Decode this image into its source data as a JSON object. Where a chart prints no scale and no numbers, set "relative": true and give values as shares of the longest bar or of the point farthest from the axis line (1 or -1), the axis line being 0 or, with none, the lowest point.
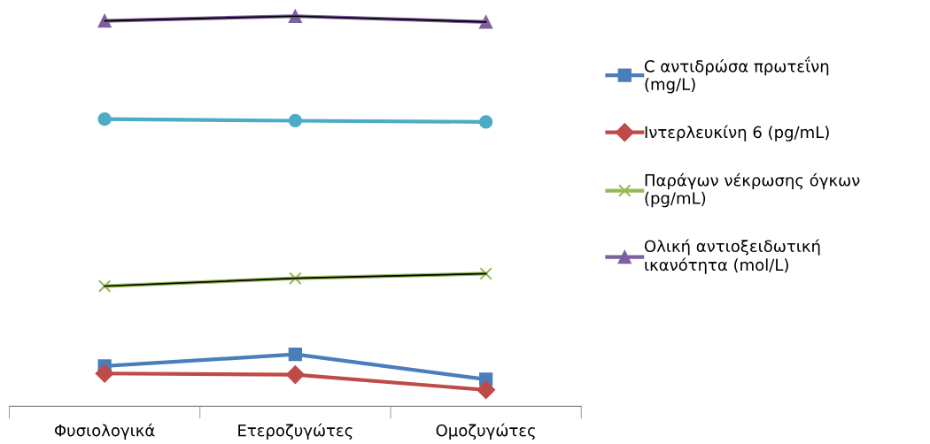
{
  "chart_data": {
    "type": "line",
    "relative": true,
    "categories": [
      "Φυσιολογικά",
      "Ετεροζυγώτες",
      "Ομοζυγώτες"
    ],
    "series": [
      {
        "name": "C αντιδρώσα πρωτεΐνη (mg/L)",
        "color": "#4a7ebb",
        "marker": "square",
        "values": [
          0.103,
          0.133,
          0.069
        ]
      },
      {
        "name": "Ιντερλευκίνη 6 (pg/mL)",
        "color": "#be4b48",
        "marker": "diamond",
        "values": [
          0.084,
          0.081,
          0.042
        ]
      },
      {
        "name": "Παράγων νέκρωσης όγκων (pg/mL)",
        "color": "#98b954",
        "marker": "cross",
        "values": [
          0.308,
          0.328,
          0.34
        ]
      },
      {
        "name": "Ολική αντιοξειδωτική ικανότητα (mol/L)",
        "color": "#7d60a0",
        "marker": "triangle",
        "values": [
          0.988,
          1,
          0.985
        ]
      },
      {
        "color": "#4bacc6",
        "marker": "circle",
        "values": [
          0.736,
          0.732,
          0.729
        ]
      },
      {
        "color": "#000000",
        "marker": "none",
        "values": [
          0.308,
          0.328,
          0.34
        ]
      },
      {
        "color": "#000000",
        "marker": "none",
        "values": [
          0.988,
          1,
          0.985
        ]
      }
    ],
    "legend": "right",
    "grid": false,
    "line_style": "solid"
  }
}
